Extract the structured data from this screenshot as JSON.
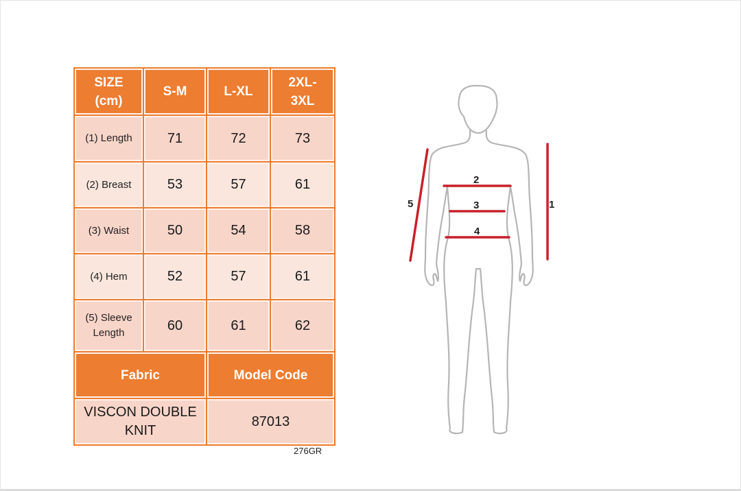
{
  "table": {
    "header": [
      "SIZE (cm)",
      "S-M",
      "L-XL",
      "2XL-3XL"
    ],
    "header_lines": [
      [
        "SIZE",
        "(cm)"
      ],
      [
        "S-M"
      ],
      [
        "L-XL"
      ],
      [
        "2XL-",
        "3XL"
      ]
    ],
    "rows": [
      {
        "label": "(1) Length",
        "values": [
          "71",
          "72",
          "73"
        ]
      },
      {
        "label": "(2) Breast",
        "values": [
          "53",
          "57",
          "61"
        ]
      },
      {
        "label": "(3) Waist",
        "values": [
          "50",
          "54",
          "58"
        ]
      },
      {
        "label": "(4) Hem",
        "values": [
          "52",
          "57",
          "61"
        ]
      },
      {
        "label": "(5) Sleeve Length",
        "label_lines": [
          "(5) Sleeve",
          "Length"
        ],
        "values": [
          "60",
          "61",
          "62"
        ]
      }
    ],
    "footer_header": [
      "Fabric",
      "Model Code"
    ],
    "fabric_lines": [
      "VISCON DOUBLE",
      "KNIT"
    ],
    "fabric": "VISCON DOUBLE KNIT",
    "model_code": "87013"
  },
  "code_label": "276GR",
  "diagram": {
    "labels": [
      "1",
      "2",
      "3",
      "4",
      "5"
    ],
    "measure_color": "#c8202a",
    "outline_color": "#b5b5b5"
  },
  "colors": {
    "header": "#ed7d31",
    "row_dark": "#f8d5c9",
    "row_light": "#fbe6de"
  }
}
